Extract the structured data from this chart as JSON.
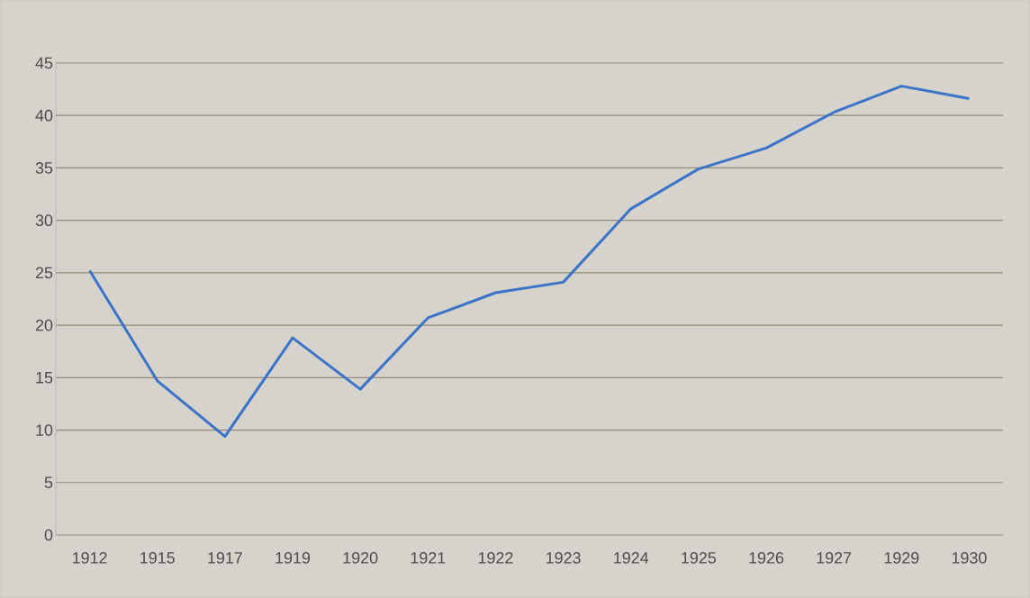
{
  "chart_data": {
    "type": "line",
    "categories": [
      "1912",
      "1915",
      "1917",
      "1919",
      "1920",
      "1921",
      "1922",
      "1923",
      "1924",
      "1925",
      "1926",
      "1927",
      "1929",
      "1930"
    ],
    "series": [
      {
        "color": "#3a73c8",
        "values": [
          25.2,
          14.7,
          9.4,
          18.8,
          13.9,
          20.7,
          23.1,
          24.1,
          31.1,
          34.9,
          36.9,
          40.3,
          42.8,
          41.6
        ]
      }
    ],
    "ylim": [
      0,
      45
    ],
    "yticks": [
      0,
      5,
      10,
      15,
      20,
      25,
      30,
      35,
      40,
      45
    ],
    "grid": "y",
    "marker": "none",
    "line_style": "solid"
  }
}
